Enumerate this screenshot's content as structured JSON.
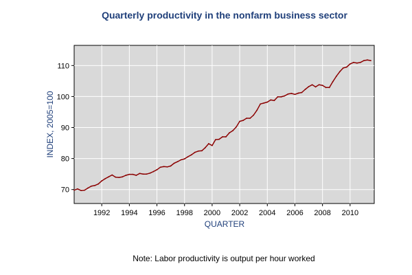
{
  "colors": {
    "title": "#1f3f7a",
    "axis_label": "#1f3f7a",
    "plot_bg": "#d9d9d9",
    "grid": "#ffffff",
    "line": "#8b0000"
  },
  "note": "Note: Labor productivity is output per hour worked",
  "chart_data": {
    "type": "line",
    "title": "Quarterly productivity in the nonfarm business sector",
    "xlabel": "QUARTER",
    "ylabel": "INDEX, 2005=100",
    "xlim": [
      1990.0,
      2011.75
    ],
    "ylim": [
      65.5,
      116.5
    ],
    "xticks": [
      1992,
      1994,
      1996,
      1998,
      2000,
      2002,
      2004,
      2006,
      2008,
      2010
    ],
    "yticks": [
      70,
      80,
      90,
      100,
      110
    ],
    "grid": true,
    "legend": "none",
    "series": [
      {
        "x": [
          1990.0,
          1990.25,
          1990.5,
          1990.75,
          1991.0,
          1991.25,
          1991.5,
          1991.75,
          1992.0,
          1992.25,
          1992.5,
          1992.75,
          1993.0,
          1993.25,
          1993.5,
          1993.75,
          1994.0,
          1994.25,
          1994.5,
          1994.75,
          1995.0,
          1995.25,
          1995.5,
          1995.75,
          1996.0,
          1996.25,
          1996.5,
          1996.75,
          1997.0,
          1997.25,
          1997.5,
          1997.75,
          1998.0,
          1998.25,
          1998.5,
          1998.75,
          1999.0,
          1999.25,
          1999.5,
          1999.75,
          2000.0,
          2000.25,
          2000.5,
          2000.75,
          2001.0,
          2001.25,
          2001.5,
          2001.75,
          2002.0,
          2002.25,
          2002.5,
          2002.75,
          2003.0,
          2003.25,
          2003.5,
          2003.75,
          2004.0,
          2004.25,
          2004.5,
          2004.75,
          2005.0,
          2005.25,
          2005.5,
          2005.75,
          2006.0,
          2006.25,
          2006.5,
          2006.75,
          2007.0,
          2007.25,
          2007.5,
          2007.75,
          2008.0,
          2008.25,
          2008.5,
          2008.75,
          2009.0,
          2009.25,
          2009.5,
          2009.75,
          2010.0,
          2010.25,
          2010.5,
          2010.75,
          2011.0,
          2011.25,
          2011.5
        ],
        "values": [
          69.8,
          70.2,
          69.7,
          69.8,
          70.5,
          71.1,
          71.3,
          71.8,
          72.8,
          73.5,
          74.1,
          74.7,
          74.0,
          73.9,
          74.1,
          74.6,
          74.9,
          74.9,
          74.6,
          75.2,
          75.0,
          75.0,
          75.3,
          75.8,
          76.4,
          77.2,
          77.4,
          77.3,
          77.6,
          78.5,
          79.0,
          79.6,
          79.9,
          80.6,
          81.2,
          82.0,
          82.4,
          82.5,
          83.5,
          84.8,
          84.2,
          86.1,
          86.2,
          87.0,
          87.0,
          88.3,
          89.0,
          90.2,
          92.0,
          92.3,
          93.0,
          93.0,
          94.0,
          95.6,
          97.6,
          97.9,
          98.2,
          98.9,
          98.7,
          99.9,
          99.9,
          100.2,
          100.8,
          101.0,
          100.7,
          101.1,
          101.3,
          102.3,
          103.2,
          103.8,
          103.1,
          103.8,
          103.6,
          102.9,
          102.9,
          104.8,
          106.5,
          108.0,
          109.2,
          109.5,
          110.5,
          111.0,
          110.8,
          111.0,
          111.6,
          111.8,
          111.6
        ]
      }
    ]
  }
}
